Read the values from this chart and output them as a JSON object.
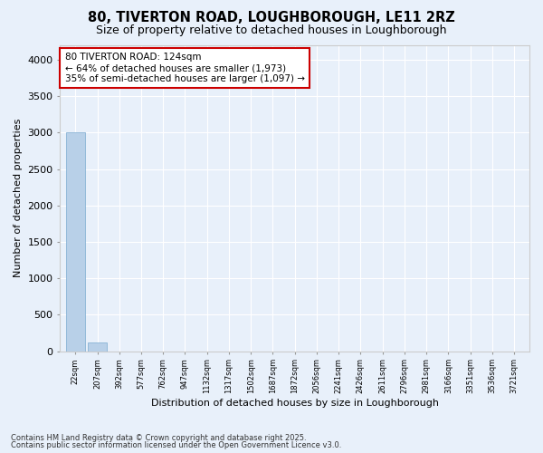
{
  "title1": "80, TIVERTON ROAD, LOUGHBOROUGH, LE11 2RZ",
  "title2": "Size of property relative to detached houses in Loughborough",
  "xlabel": "Distribution of detached houses by size in Loughborough",
  "ylabel": "Number of detached properties",
  "categories": [
    "22sqm",
    "207sqm",
    "392sqm",
    "577sqm",
    "762sqm",
    "947sqm",
    "1132sqm",
    "1317sqm",
    "1502sqm",
    "1687sqm",
    "1872sqm",
    "2056sqm",
    "2241sqm",
    "2426sqm",
    "2611sqm",
    "2796sqm",
    "2981sqm",
    "3166sqm",
    "3351sqm",
    "3536sqm",
    "3721sqm"
  ],
  "values": [
    3000,
    115,
    0,
    0,
    0,
    0,
    0,
    0,
    0,
    0,
    0,
    0,
    0,
    0,
    0,
    0,
    0,
    0,
    0,
    0,
    0
  ],
  "bar_color": "#b8d0e8",
  "bar_edge_color": "#7aaad0",
  "ylim": [
    0,
    4200
  ],
  "yticks": [
    0,
    500,
    1000,
    1500,
    2000,
    2500,
    3000,
    3500,
    4000
  ],
  "annotation_line1": "80 TIVERTON ROAD: 124sqm",
  "annotation_line2": "← 64% of detached houses are smaller (1,973)",
  "annotation_line3": "35% of semi-detached houses are larger (1,097) →",
  "annotation_box_color": "#cc0000",
  "bg_color": "#e8f0fa",
  "grid_color": "#ffffff",
  "footer1": "Contains HM Land Registry data © Crown copyright and database right 2025.",
  "footer2": "Contains public sector information licensed under the Open Government Licence v3.0."
}
